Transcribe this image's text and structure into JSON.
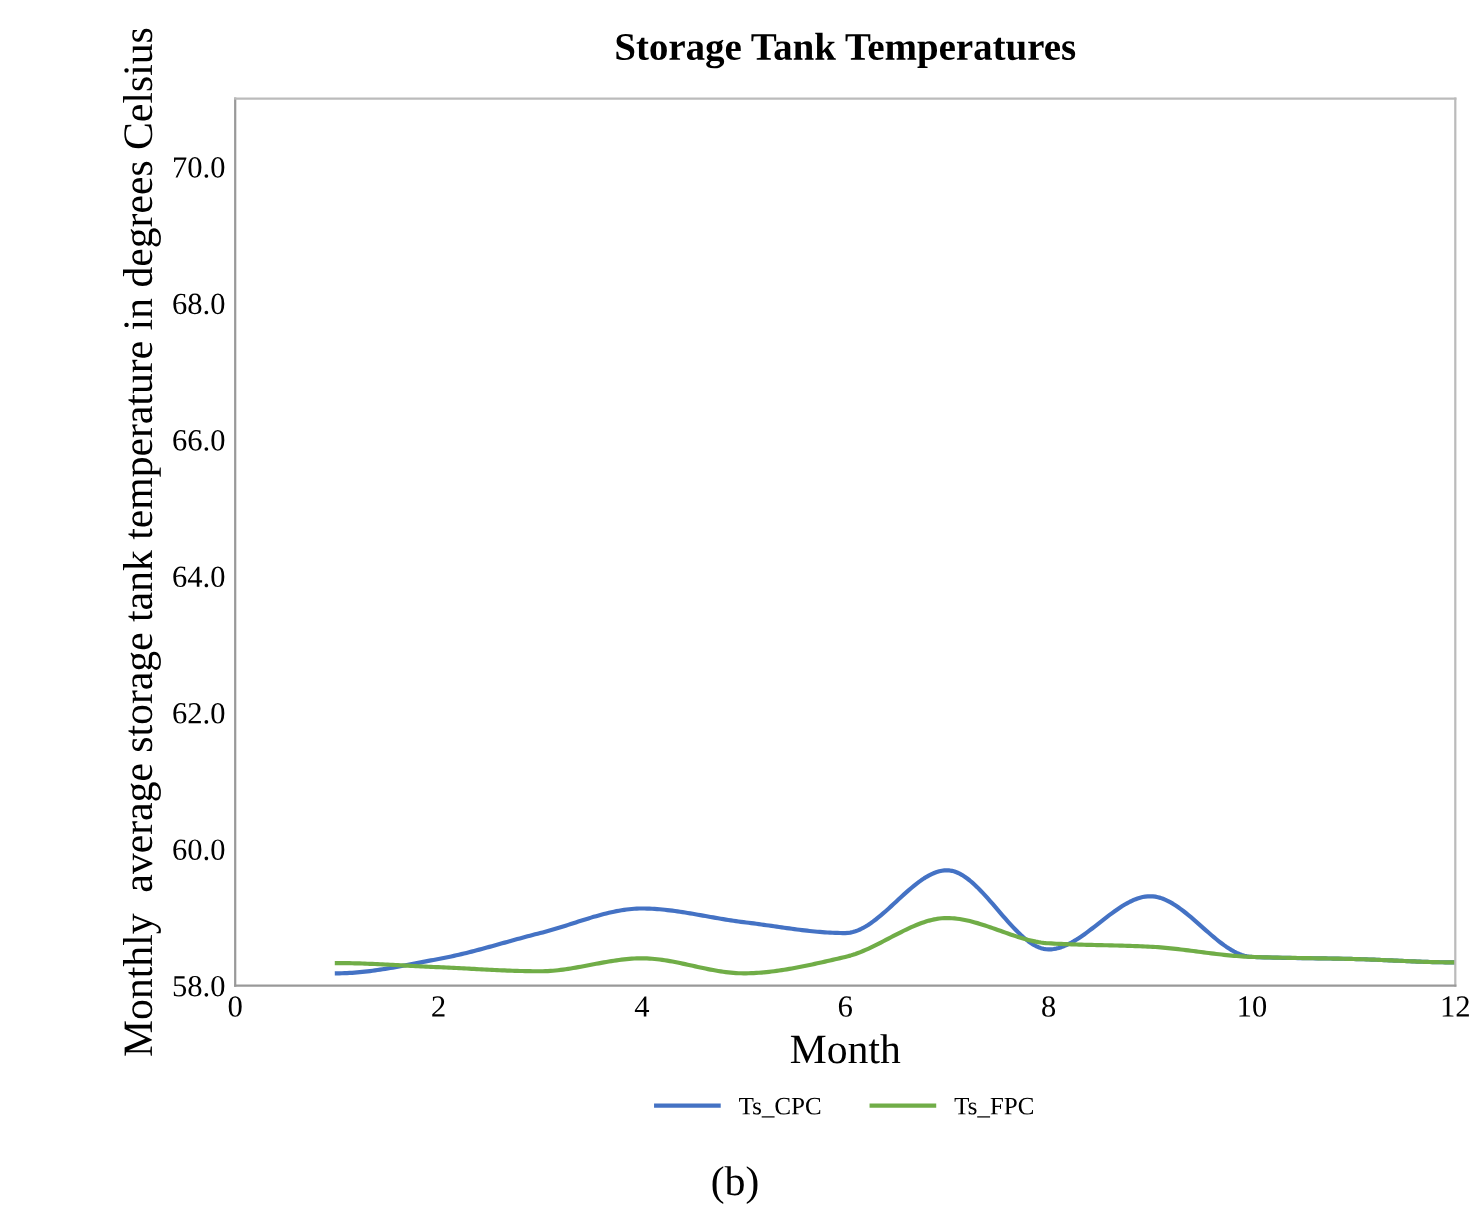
{
  "chart_data": {
    "type": "line",
    "title": "Storage Tank Temperatures",
    "xlabel": "Month",
    "ylabel": "Monthly  average storage tank temperature in degrees Celsius",
    "x": [
      1,
      2,
      3,
      4,
      5,
      6,
      7,
      8,
      9,
      10,
      11,
      12
    ],
    "series": [
      {
        "name": "Ts_CPC",
        "color": "#4472c4",
        "values": [
          58.18,
          58.39,
          58.77,
          59.13,
          58.93,
          58.77,
          59.69,
          58.53,
          59.31,
          58.42,
          58.39,
          58.34
        ]
      },
      {
        "name": "Ts_FPC",
        "color": "#70ad47",
        "values": [
          58.33,
          58.27,
          58.21,
          58.4,
          58.18,
          58.42,
          58.99,
          58.62,
          58.57,
          58.42,
          58.39,
          58.34
        ]
      }
    ],
    "xlim": [
      0,
      12
    ],
    "xticks": [
      0,
      2,
      4,
      6,
      8,
      10,
      12
    ],
    "ylim": [
      58,
      71
    ],
    "yticks": [
      {
        "value": 58,
        "label": "58.0"
      },
      {
        "value": 60,
        "label": "60.0"
      },
      {
        "value": 62,
        "label": "62.0"
      },
      {
        "value": 64,
        "label": "64.0"
      },
      {
        "value": 66,
        "label": "66.0"
      },
      {
        "value": 68,
        "label": "68.0"
      },
      {
        "value": 70,
        "label": "70.0"
      }
    ],
    "grid": false,
    "legend": "bottom",
    "marker": "none",
    "line_style": "solid",
    "annotations": [
      "(b)"
    ]
  }
}
